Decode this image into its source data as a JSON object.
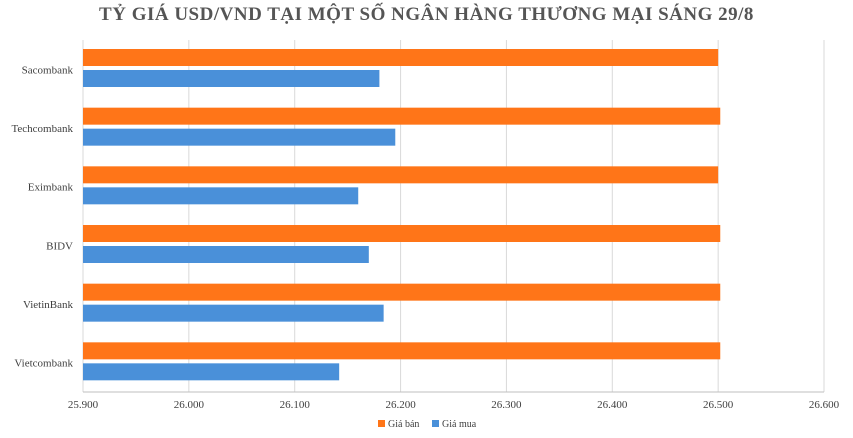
{
  "chart_data": {
    "type": "bar",
    "orientation": "horizontal",
    "title": "TỶ GIÁ USD/VND TẠI MỘT SỐ NGÂN HÀNG THƯƠNG MẠI SÁNG 29/8",
    "xlabel": "",
    "ylabel": "",
    "categories": [
      "Sacombank",
      "Techcombank",
      "Eximbank",
      "BIDV",
      "VietinBank",
      "Vietcombank"
    ],
    "series": [
      {
        "name": "Giá bán",
        "color": "#FF7518",
        "values": [
          26500,
          26502,
          26500,
          26502,
          26502,
          26502
        ]
      },
      {
        "name": "Giá mua",
        "color": "#4A90D9",
        "values": [
          26180,
          26195,
          26160,
          26170,
          26184,
          26142
        ]
      }
    ],
    "xlim": [
      25900,
      26600
    ],
    "xticks": [
      25900,
      26000,
      26100,
      26200,
      26300,
      26400,
      26500,
      26600
    ],
    "xtick_labels": [
      "25.900",
      "26.000",
      "26.100",
      "26.200",
      "26.300",
      "26.400",
      "26.500",
      "26.600"
    ],
    "grid": true,
    "legend_position": "bottom"
  }
}
